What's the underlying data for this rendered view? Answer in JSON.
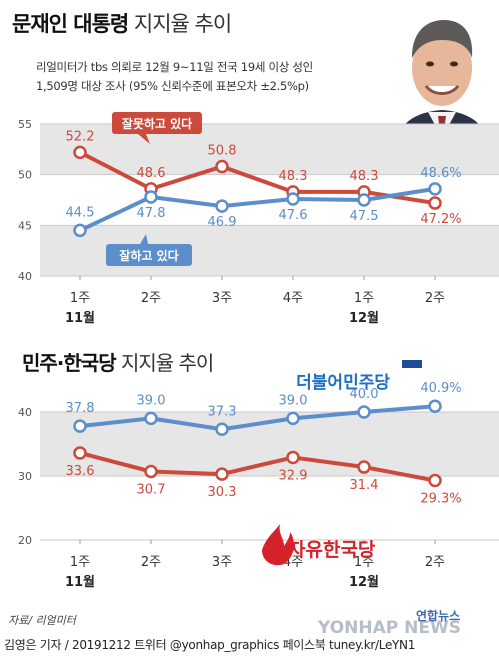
{
  "header": {
    "title_bold": "문재인 대통령",
    "title_light": "지지율 추이",
    "subtitle_line1": "리얼미터가 tbs 의뢰로 12월 9~11일 전국 19세 이상 성인",
    "subtitle_line2": "1,509명 대상 조사 (95% 신뢰수준에 표본오차 ±2.5%p)"
  },
  "section2": {
    "title_bold": "민주·한국당",
    "title_light": "지지율 추이"
  },
  "colors": {
    "red": "#cc4a3c",
    "blue": "#5b8ecb",
    "band": "#e6e6e6"
  },
  "chart_data": [
    {
      "type": "line",
      "categories": [
        "1주",
        "2주",
        "3주",
        "4주",
        "1주",
        "2주"
      ],
      "month_labels": [
        {
          "index": 0,
          "label": "11월"
        },
        {
          "index": 4,
          "label": "12월"
        }
      ],
      "ylim": [
        40,
        55
      ],
      "yticks": [
        40,
        45,
        50,
        55
      ],
      "series": [
        {
          "name": "잘못하고 있다",
          "color": "#cc4a3c",
          "values": [
            52.2,
            48.6,
            50.8,
            48.3,
            48.3,
            47.2
          ],
          "labels": [
            "52.2",
            "48.6",
            "50.8",
            "48.3",
            "48.3",
            "47.2%"
          ]
        },
        {
          "name": "잘하고 있다",
          "color": "#5b8ecb",
          "values": [
            44.5,
            47.8,
            46.9,
            47.6,
            47.5,
            48.6
          ],
          "labels": [
            "44.5",
            "47.8",
            "46.9",
            "47.6",
            "47.5",
            "48.6%"
          ]
        }
      ]
    },
    {
      "type": "line",
      "categories": [
        "1주",
        "2주",
        "3주",
        "4주",
        "1주",
        "2주"
      ],
      "month_labels": [
        {
          "index": 0,
          "label": "11월"
        },
        {
          "index": 4,
          "label": "12월"
        }
      ],
      "ylim": [
        20,
        45
      ],
      "yticks": [
        20,
        30,
        40
      ],
      "series": [
        {
          "name": "더불어민주당",
          "color": "#5b8ecb",
          "values": [
            37.8,
            39.0,
            37.3,
            39.0,
            40.0,
            40.9
          ],
          "labels": [
            "37.8",
            "39.0",
            "37.3",
            "39.0",
            "40.0",
            "40.9%"
          ]
        },
        {
          "name": "자유한국당",
          "color": "#cc4a3c",
          "values": [
            33.6,
            30.7,
            30.3,
            32.9,
            31.4,
            29.3
          ],
          "labels": [
            "33.6",
            "30.7",
            "30.3",
            "32.9",
            "31.4",
            "29.3%"
          ]
        }
      ]
    }
  ],
  "source": "자료/ 리얼미터",
  "footer": "김영은 기자 / 20191212  트위터 @yonhap_graphics  페이스북 tuney.kr/LeYN1",
  "logo": "연합뉴스",
  "watermark": "YONHAP NEWS"
}
